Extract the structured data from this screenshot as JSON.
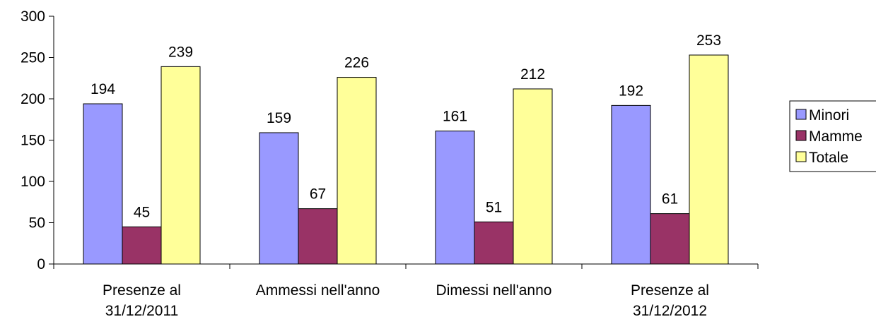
{
  "chart_data": {
    "type": "bar",
    "categories": [
      [
        "Presenze al",
        "31/12/2011"
      ],
      [
        "Ammessi nell'anno"
      ],
      [
        "Dimessi nell'anno"
      ],
      [
        "Presenze al",
        "31/12/2012"
      ]
    ],
    "series": [
      {
        "name": "Minori",
        "values": [
          194,
          159,
          161,
          192
        ],
        "color": "#9999ff"
      },
      {
        "name": "Mamme",
        "values": [
          45,
          67,
          51,
          61
        ],
        "color": "#993366"
      },
      {
        "name": "Totale",
        "values": [
          239,
          226,
          212,
          253
        ],
        "color": "#ffff99"
      }
    ],
    "ylim": [
      0,
      300
    ],
    "yticks": [
      0,
      50,
      100,
      150,
      200,
      250,
      300
    ],
    "grid": false,
    "data_labels": true,
    "legend_position": "right"
  }
}
